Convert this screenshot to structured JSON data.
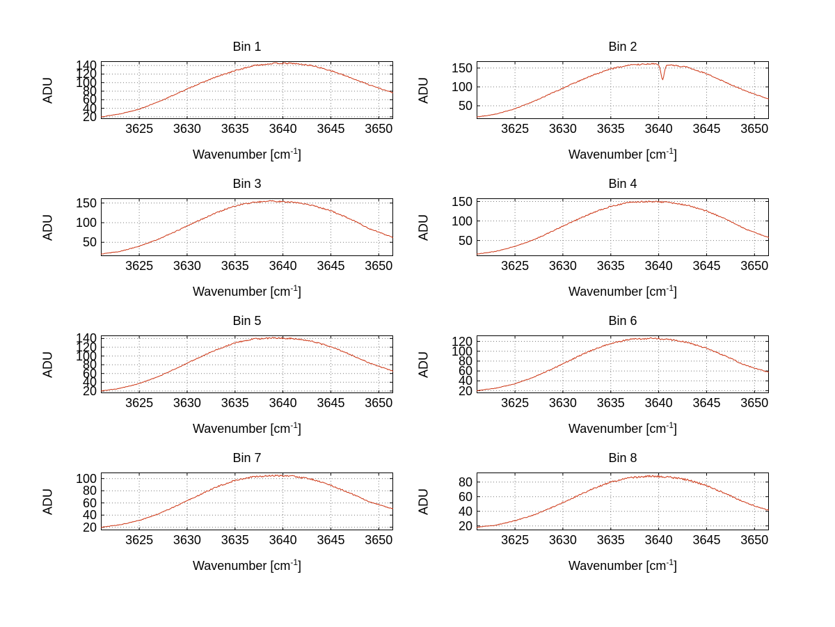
{
  "figure": {
    "background": "#ffffff",
    "line_color": "#cc3311",
    "grid_color": "#777777",
    "axis_color": "#000000"
  },
  "labels": {
    "ylabel": "ADU",
    "xlabel_pre": "Wavenumber [cm",
    "xlabel_sup": "-1",
    "xlabel_post": "]"
  },
  "chart_data": [
    {
      "type": "line",
      "title": "Bin 1",
      "xlabel": "Wavenumber [cm^-1]",
      "ylabel": "ADU",
      "xlim": [
        3621,
        3651.5
      ],
      "xticks": [
        3625,
        3630,
        3635,
        3640,
        3645,
        3650
      ],
      "ylim": [
        15,
        150
      ],
      "yticks": [
        20,
        40,
        60,
        80,
        100,
        120,
        140
      ],
      "x": [
        3621,
        3623,
        3625,
        3627,
        3629,
        3631,
        3633,
        3635,
        3637,
        3639,
        3641,
        3643,
        3645,
        3647,
        3649,
        3651.5
      ],
      "y": [
        20,
        27,
        38,
        55,
        75,
        95,
        113,
        128,
        140,
        145,
        145,
        140,
        128,
        112,
        95,
        76
      ],
      "noise": 1.5,
      "grid": true,
      "legend": false
    },
    {
      "type": "line",
      "title": "Bin 2",
      "xlabel": "Wavenumber [cm^-1]",
      "ylabel": "ADU",
      "xlim": [
        3621,
        3651.5
      ],
      "xticks": [
        3625,
        3630,
        3635,
        3640,
        3645,
        3650
      ],
      "ylim": [
        15,
        168
      ],
      "yticks": [
        50,
        100,
        150
      ],
      "x": [
        3621,
        3623,
        3625,
        3627,
        3629,
        3631,
        3633,
        3635,
        3637,
        3639,
        3641,
        3643,
        3645,
        3647,
        3649,
        3651.5
      ],
      "y": [
        20,
        28,
        42,
        62,
        85,
        108,
        130,
        148,
        158,
        161,
        159,
        152,
        135,
        112,
        90,
        68
      ],
      "dip": {
        "x": 3640.4,
        "depth": 40,
        "width": 0.25
      },
      "noise": 1.8,
      "grid": true,
      "legend": false
    },
    {
      "type": "line",
      "title": "Bin 3",
      "xlabel": "Wavenumber [cm^-1]",
      "ylabel": "ADU",
      "xlim": [
        3621,
        3651.5
      ],
      "xticks": [
        3625,
        3630,
        3635,
        3640,
        3645,
        3650
      ],
      "ylim": [
        15,
        162
      ],
      "yticks": [
        50,
        100,
        150
      ],
      "x": [
        3621,
        3623,
        3625,
        3627,
        3629,
        3631,
        3633,
        3635,
        3637,
        3639,
        3641,
        3643,
        3645,
        3647,
        3649,
        3651.5
      ],
      "y": [
        20,
        27,
        40,
        58,
        80,
        103,
        125,
        143,
        152,
        155,
        152,
        145,
        130,
        110,
        85,
        62
      ],
      "noise": 1.8,
      "grid": true,
      "legend": false
    },
    {
      "type": "line",
      "title": "Bin 4",
      "xlabel": "Wavenumber [cm^-1]",
      "ylabel": "ADU",
      "xlim": [
        3621,
        3651.5
      ],
      "xticks": [
        3625,
        3630,
        3635,
        3640,
        3645,
        3650
      ],
      "ylim": [
        10,
        158
      ],
      "yticks": [
        50,
        100,
        150
      ],
      "x": [
        3621,
        3623,
        3625,
        3627,
        3629,
        3631,
        3633,
        3635,
        3637,
        3639,
        3641,
        3643,
        3645,
        3647,
        3649,
        3651.5
      ],
      "y": [
        15,
        22,
        35,
        52,
        75,
        98,
        120,
        138,
        148,
        150,
        148,
        140,
        125,
        105,
        80,
        57
      ],
      "noise": 1.8,
      "grid": true,
      "legend": false
    },
    {
      "type": "line",
      "title": "Bin 5",
      "xlabel": "Wavenumber [cm^-1]",
      "ylabel": "ADU",
      "xlim": [
        3621,
        3651.5
      ],
      "xticks": [
        3625,
        3630,
        3635,
        3640,
        3645,
        3650
      ],
      "ylim": [
        15,
        147
      ],
      "yticks": [
        20,
        40,
        60,
        80,
        100,
        120,
        140
      ],
      "x": [
        3621,
        3623,
        3625,
        3627,
        3629,
        3631,
        3633,
        3635,
        3637,
        3639,
        3641,
        3643,
        3645,
        3647,
        3649,
        3651.5
      ],
      "y": [
        20,
        26,
        37,
        53,
        73,
        94,
        114,
        130,
        139,
        141,
        140,
        134,
        121,
        104,
        84,
        65
      ],
      "noise": 1.5,
      "grid": true,
      "legend": false
    },
    {
      "type": "line",
      "title": "Bin 6",
      "xlabel": "Wavenumber [cm^-1]",
      "ylabel": "ADU",
      "xlim": [
        3621,
        3651.5
      ],
      "xticks": [
        3625,
        3630,
        3635,
        3640,
        3645,
        3650
      ],
      "ylim": [
        15,
        132
      ],
      "yticks": [
        20,
        40,
        60,
        80,
        100,
        120
      ],
      "x": [
        3621,
        3623,
        3625,
        3627,
        3629,
        3631,
        3633,
        3635,
        3637,
        3639,
        3641,
        3643,
        3645,
        3647,
        3649,
        3651.5
      ],
      "y": [
        20,
        25,
        34,
        48,
        65,
        84,
        102,
        116,
        124,
        126,
        124,
        118,
        106,
        90,
        72,
        57
      ],
      "noise": 1.5,
      "grid": true,
      "legend": false
    },
    {
      "type": "line",
      "title": "Bin 7",
      "xlabel": "Wavenumber [cm^-1]",
      "ylabel": "ADU",
      "xlim": [
        3621,
        3651.5
      ],
      "xticks": [
        3625,
        3630,
        3635,
        3640,
        3645,
        3650
      ],
      "ylim": [
        15,
        110
      ],
      "yticks": [
        20,
        40,
        60,
        80,
        100
      ],
      "x": [
        3621,
        3623,
        3625,
        3627,
        3629,
        3631,
        3633,
        3635,
        3637,
        3639,
        3641,
        3643,
        3645,
        3647,
        3649,
        3651.5
      ],
      "y": [
        20,
        24,
        31,
        42,
        56,
        71,
        86,
        97,
        103,
        105,
        104,
        99,
        89,
        76,
        62,
        50
      ],
      "noise": 1.2,
      "grid": true,
      "legend": false
    },
    {
      "type": "line",
      "title": "Bin 8",
      "xlabel": "Wavenumber [cm^-1]",
      "ylabel": "ADU",
      "xlim": [
        3621,
        3651.5
      ],
      "xticks": [
        3625,
        3630,
        3635,
        3640,
        3645,
        3650
      ],
      "ylim": [
        14,
        93
      ],
      "yticks": [
        20,
        40,
        60,
        80
      ],
      "x": [
        3621,
        3623,
        3625,
        3627,
        3629,
        3631,
        3633,
        3635,
        3637,
        3639,
        3641,
        3643,
        3645,
        3647,
        3649,
        3651.5
      ],
      "y": [
        18,
        21,
        27,
        35,
        46,
        58,
        70,
        80,
        86,
        88,
        87,
        83,
        75,
        64,
        52,
        41
      ],
      "noise": 1.2,
      "grid": true,
      "legend": false
    }
  ]
}
